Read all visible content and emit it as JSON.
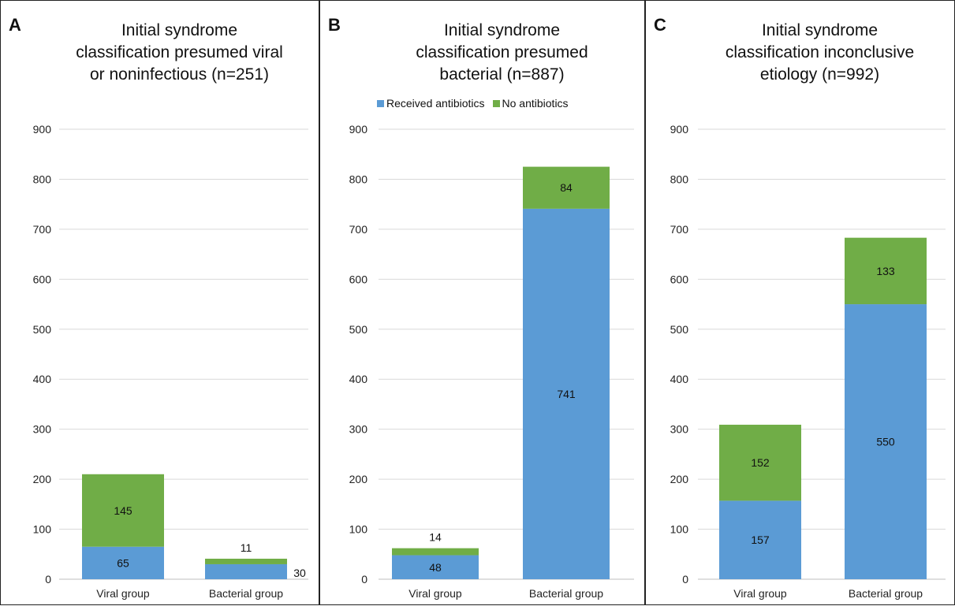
{
  "colors": {
    "received": "#5b9bd5",
    "none": "#70ad47",
    "grid": "#d9d9d9"
  },
  "legend": {
    "received_label": "Received antibiotics",
    "none_label": "No antibiotics"
  },
  "chart_data": [
    {
      "type": "bar",
      "panel": "A",
      "title_lines": [
        "Initial syndrome",
        "classification presumed viral",
        "or noninfectious (n=251)"
      ],
      "categories": [
        "Viral group",
        "Bacterial group"
      ],
      "series": [
        {
          "name": "Received antibiotics",
          "values": [
            65,
            30
          ]
        },
        {
          "name": "No antibiotics",
          "values": [
            145,
            11
          ]
        }
      ],
      "ylim": [
        0,
        900
      ],
      "yticks": [
        0,
        100,
        200,
        300,
        400,
        500,
        600,
        700,
        800,
        900
      ],
      "stacked": true,
      "legend": false
    },
    {
      "type": "bar",
      "panel": "B",
      "title_lines": [
        "Initial syndrome",
        "classification presumed",
        "bacterial (n=887)"
      ],
      "categories": [
        "Viral group",
        "Bacterial group"
      ],
      "series": [
        {
          "name": "Received antibiotics",
          "values": [
            48,
            741
          ]
        },
        {
          "name": "No antibiotics",
          "values": [
            14,
            84
          ]
        }
      ],
      "ylim": [
        0,
        900
      ],
      "yticks": [
        0,
        100,
        200,
        300,
        400,
        500,
        600,
        700,
        800,
        900
      ],
      "stacked": true,
      "legend": true
    },
    {
      "type": "bar",
      "panel": "C",
      "title_lines": [
        "Initial syndrome",
        "classification inconclusive",
        "etiology (n=992)"
      ],
      "categories": [
        "Viral group",
        "Bacterial group"
      ],
      "series": [
        {
          "name": "Received antibiotics",
          "values": [
            157,
            550
          ]
        },
        {
          "name": "No antibiotics",
          "values": [
            152,
            133
          ]
        }
      ],
      "ylim": [
        0,
        900
      ],
      "yticks": [
        0,
        100,
        200,
        300,
        400,
        500,
        600,
        700,
        800,
        900
      ],
      "stacked": true,
      "legend": false
    }
  ]
}
